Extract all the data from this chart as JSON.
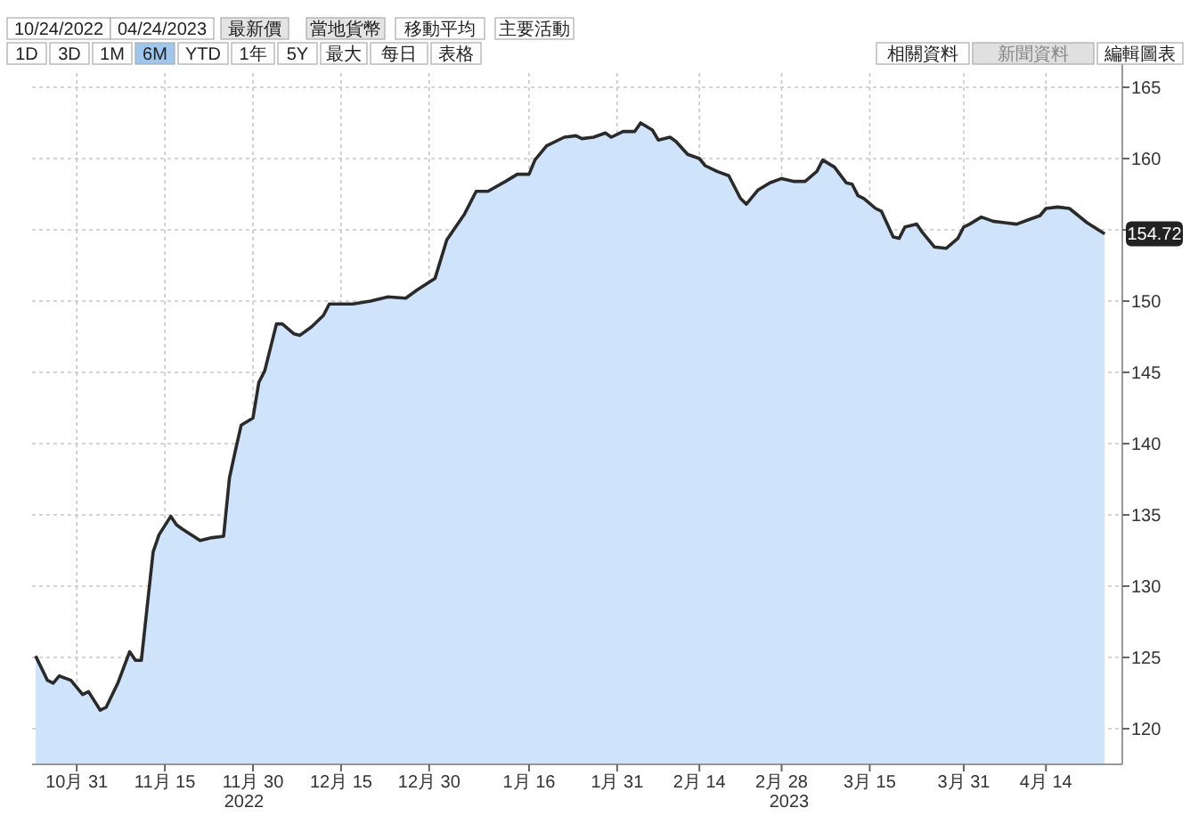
{
  "chart_data": {
    "type": "area",
    "x": [
      "2022-10-24",
      "2022-10-26",
      "2022-10-27",
      "2022-10-28",
      "2022-10-30",
      "2022-11-01",
      "2022-11-02",
      "2022-11-04",
      "2022-11-05",
      "2022-11-07",
      "2022-11-09",
      "2022-11-10",
      "2022-11-11",
      "2022-11-13",
      "2022-11-14",
      "2022-11-16",
      "2022-11-17",
      "2022-11-18",
      "2022-11-21",
      "2022-11-23",
      "2022-11-25",
      "2022-11-26",
      "2022-11-27",
      "2022-11-28",
      "2022-11-30",
      "2022-12-01",
      "2022-12-02",
      "2022-12-04",
      "2022-12-05",
      "2022-12-07",
      "2022-12-08",
      "2022-12-10",
      "2022-12-12",
      "2022-12-13",
      "2022-12-17",
      "2022-12-20",
      "2022-12-23",
      "2022-12-26",
      "2022-12-28",
      "2022-12-31",
      "2023-01-02",
      "2023-01-05",
      "2023-01-07",
      "2023-01-09",
      "2023-01-12",
      "2023-01-14",
      "2023-01-16",
      "2023-01-17",
      "2023-01-19",
      "2023-01-22",
      "2023-01-24",
      "2023-01-25",
      "2023-01-27",
      "2023-01-29",
      "2023-01-30",
      "2023-02-01",
      "2023-02-03",
      "2023-02-04",
      "2023-02-06",
      "2023-02-07",
      "2023-02-09",
      "2023-02-10",
      "2023-02-12",
      "2023-02-14",
      "2023-02-15",
      "2023-02-17",
      "2023-02-19",
      "2023-02-21",
      "2023-02-22",
      "2023-02-24",
      "2023-02-26",
      "2023-02-28",
      "2023-03-02",
      "2023-03-04",
      "2023-03-06",
      "2023-03-07",
      "2023-03-09",
      "2023-03-11",
      "2023-03-12",
      "2023-03-13",
      "2023-03-14",
      "2023-03-16",
      "2023-03-17",
      "2023-03-19",
      "2023-03-20",
      "2023-03-21",
      "2023-03-23",
      "2023-03-24",
      "2023-03-26",
      "2023-03-28",
      "2023-03-30",
      "2023-03-31",
      "2023-04-01",
      "2023-04-03",
      "2023-04-05",
      "2023-04-07",
      "2023-04-09",
      "2023-04-11",
      "2023-04-13",
      "2023-04-14",
      "2023-04-16",
      "2023-04-18",
      "2023-04-21",
      "2023-04-24"
    ],
    "series": [
      {
        "color": "#cfe4fa",
        "values": [
          125.1,
          123.4,
          123.2,
          123.7,
          123.4,
          122.4,
          122.6,
          121.3,
          121.5,
          123.2,
          125.4,
          124.8,
          124.8,
          132.4,
          133.6,
          134.9,
          134.3,
          134.0,
          133.2,
          133.4,
          133.5,
          137.6,
          139.5,
          141.3,
          141.8,
          144.3,
          145.1,
          148.4,
          148.4,
          147.7,
          147.6,
          148.2,
          149.0,
          149.8,
          149.8,
          150.0,
          150.3,
          150.2,
          150.8,
          151.6,
          154.3,
          156.1,
          157.7,
          157.7,
          158.4,
          158.9,
          158.9,
          159.9,
          160.9,
          161.5,
          161.6,
          161.4,
          161.5,
          161.8,
          161.5,
          161.9,
          161.9,
          162.5,
          162.0,
          161.3,
          161.5,
          161.2,
          160.3,
          160.0,
          159.5,
          159.1,
          158.8,
          157.2,
          156.8,
          157.8,
          158.3,
          158.6,
          158.4,
          158.4,
          159.1,
          159.9,
          159.4,
          158.3,
          158.2,
          157.4,
          157.2,
          156.5,
          156.3,
          154.5,
          154.4,
          155.2,
          155.4,
          154.8,
          153.8,
          153.7,
          154.4,
          155.2,
          155.4,
          155.9,
          155.6,
          155.5,
          155.4,
          155.7,
          156.0,
          156.5,
          156.6,
          156.5,
          155.5,
          154.72
        ]
      }
    ],
    "xlim": [
      "2022-10-24",
      "2023-04-27"
    ],
    "xticks": [
      {
        "value": "2022-10-31",
        "label": "10月 31"
      },
      {
        "value": "2022-11-15",
        "label": "11月 15"
      },
      {
        "value": "2022-11-30",
        "label": "11月 30"
      },
      {
        "value": "2022-12-15",
        "label": "12月 15"
      },
      {
        "value": "2022-12-30",
        "label": "12月 30"
      },
      {
        "value": "2023-01-16",
        "label": "1月 16"
      },
      {
        "value": "2023-01-31",
        "label": "1月 31"
      },
      {
        "value": "2023-02-14",
        "label": "2月 14"
      },
      {
        "value": "2023-02-28",
        "label": "2月 28"
      },
      {
        "value": "2023-03-15",
        "label": "3月 15"
      },
      {
        "value": "2023-03-31",
        "label": "3月 31"
      },
      {
        "value": "2023-04-14",
        "label": "4月 14"
      }
    ],
    "ylim": [
      117.5,
      166
    ],
    "yticks": [
      120,
      125,
      130,
      135,
      140,
      145,
      150,
      {
        "value": 155,
        "label": null
      },
      160,
      165
    ],
    "grid": true,
    "annotations": [
      "10/24/2022",
      "04/24/2023",
      "最新價",
      "當地貨幣",
      "移動平均",
      "主要活動",
      "1D",
      "3D",
      "1M",
      "6M",
      "YTD",
      "1年",
      "5Y",
      "最大",
      "每日",
      "表格",
      "相關資料",
      "新聞資料",
      "編輯圖表",
      "2022",
      "2023",
      {
        "text": "154.72",
        "x": "2023-04-24",
        "y": 154.72
      }
    ]
  }
}
